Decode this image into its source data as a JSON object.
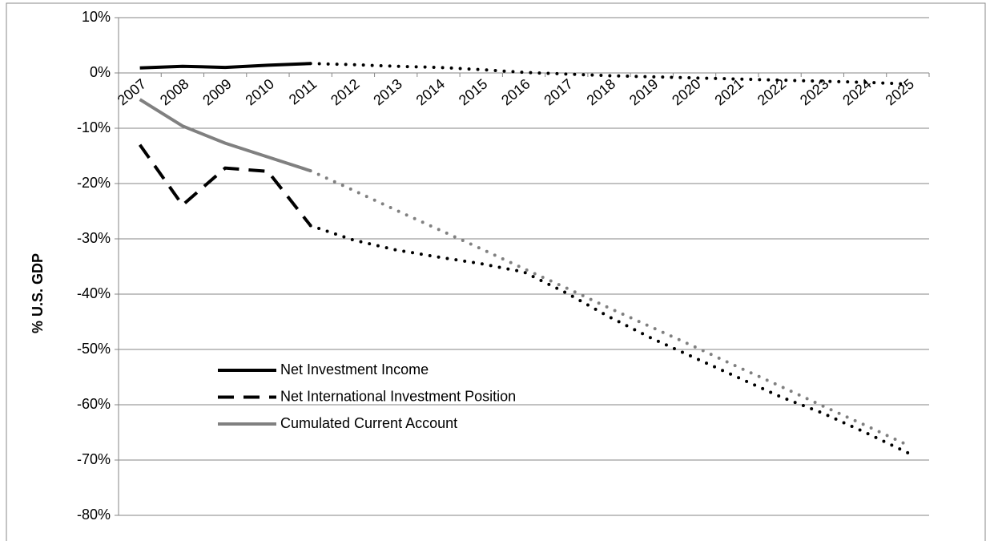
{
  "chart_data": {
    "type": "line",
    "y_label": "% U.S. GDP",
    "categories": [
      "2007",
      "2008",
      "2009",
      "2010",
      "2011",
      "2012",
      "2013",
      "2014",
      "2015",
      "2016",
      "2017",
      "2018",
      "2019",
      "2020",
      "2021",
      "2022",
      "2023",
      "2024",
      "2025"
    ],
    "series": [
      {
        "name": "Net Investment Income",
        "color": "#000000",
        "line_style": "solid",
        "values": [
          0.9,
          1.2,
          1.0,
          1.4,
          1.7,
          null,
          null,
          null,
          null,
          null,
          null,
          null,
          null,
          null,
          null,
          null,
          null,
          null,
          null
        ],
        "projection": [
          null,
          null,
          null,
          null,
          1.7,
          1.5,
          1.2,
          1.0,
          0.6,
          0.1,
          -0.2,
          -0.5,
          -0.7,
          -0.9,
          -1.1,
          -1.3,
          -1.5,
          -1.7,
          -2.0
        ]
      },
      {
        "name": "Net International Investment Position",
        "color": "#000000",
        "line_style": "dashed",
        "values": [
          -13.0,
          -23.9,
          -17.2,
          -17.8,
          -27.6,
          null,
          null,
          null,
          null,
          null,
          null,
          null,
          null,
          null,
          null,
          null,
          null,
          null,
          null
        ],
        "projection": [
          null,
          null,
          null,
          null,
          -27.6,
          -30.2,
          -32.0,
          -33.3,
          -34.5,
          -36.0,
          -39.8,
          -44.1,
          -48.0,
          -51.5,
          -55.0,
          -58.5,
          -61.5,
          -65.0,
          -68.7
        ]
      },
      {
        "name": "Cumulated Current Account",
        "color": "#808080",
        "line_style": "solid",
        "values": [
          -4.8,
          -9.6,
          -12.7,
          -15.2,
          -17.7,
          null,
          null,
          null,
          null,
          null,
          null,
          null,
          null,
          null,
          null,
          null,
          null,
          null,
          null
        ],
        "projection": [
          null,
          null,
          null,
          null,
          -17.7,
          -21.2,
          -24.8,
          -28.3,
          -31.8,
          -35.4,
          -38.9,
          -42.5,
          -46.0,
          -49.5,
          -53.1,
          -56.6,
          -60.2,
          -63.7,
          -67.3
        ]
      }
    ],
    "ylim": [
      -80,
      10
    ],
    "yticks": [
      {
        "value": 10,
        "label": "10%"
      },
      {
        "value": 0,
        "label": "0%"
      },
      {
        "value": -10,
        "label": "-10%"
      },
      {
        "value": -20,
        "label": "-20%"
      },
      {
        "value": -30,
        "label": "-30%"
      },
      {
        "value": -40,
        "label": "-40%"
      },
      {
        "value": -50,
        "label": "-50%"
      },
      {
        "value": -60,
        "label": "-60%"
      },
      {
        "value": -70,
        "label": "-70%"
      },
      {
        "value": -80,
        "label": "-80%"
      }
    ],
    "grid": true
  }
}
